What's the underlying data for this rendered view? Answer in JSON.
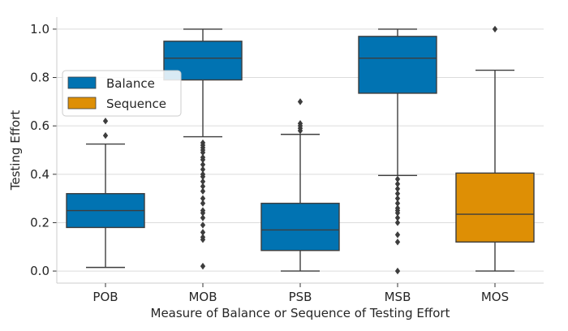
{
  "chart_data": {
    "type": "box",
    "xlabel": "Measure of Balance or Sequence of Testing Effort",
    "ylabel": "Testing Effort",
    "ylim": [
      -0.05,
      1.05
    ],
    "yticks": [
      0.0,
      0.2,
      0.4,
      0.6,
      0.8,
      1.0
    ],
    "ytick_labels": [
      "0.0",
      "0.2",
      "0.4",
      "0.6",
      "0.8",
      "1.0"
    ],
    "grid": true,
    "legend_position": "upper-left",
    "legend": [
      {
        "label": "Balance",
        "color": "#0173B2"
      },
      {
        "label": "Sequence",
        "color": "#DE8F05"
      }
    ],
    "boxes": [
      {
        "category": "POB",
        "group": "Balance",
        "whisker_low": 0.015,
        "q1": 0.18,
        "median": 0.25,
        "q3": 0.32,
        "whisker_high": 0.525,
        "outliers": [
          0.56,
          0.62
        ]
      },
      {
        "category": "MOB",
        "group": "Balance",
        "whisker_low": 0.555,
        "q1": 0.79,
        "median": 0.88,
        "q3": 0.95,
        "whisker_high": 1.0,
        "outliers": [
          0.53,
          0.52,
          0.51,
          0.5,
          0.49,
          0.47,
          0.46,
          0.44,
          0.42,
          0.4,
          0.39,
          0.37,
          0.35,
          0.33,
          0.3,
          0.28,
          0.25,
          0.24,
          0.22,
          0.19,
          0.16,
          0.14,
          0.13,
          0.02
        ]
      },
      {
        "category": "PSB",
        "group": "Balance",
        "whisker_low": 0.0,
        "q1": 0.085,
        "median": 0.17,
        "q3": 0.28,
        "whisker_high": 0.565,
        "outliers": [
          0.58,
          0.59,
          0.6,
          0.61,
          0.7
        ]
      },
      {
        "category": "MSB",
        "group": "Balance",
        "whisker_low": 0.395,
        "q1": 0.735,
        "median": 0.88,
        "q3": 0.97,
        "whisker_high": 1.0,
        "outliers": [
          0.38,
          0.36,
          0.34,
          0.32,
          0.3,
          0.28,
          0.26,
          0.25,
          0.24,
          0.22,
          0.2,
          0.15,
          0.12,
          0.0
        ]
      },
      {
        "category": "MOS",
        "group": "Sequence",
        "whisker_low": 0.0,
        "q1": 0.12,
        "median": 0.235,
        "q3": 0.405,
        "whisker_high": 0.83,
        "outliers": [
          1.0
        ]
      }
    ]
  }
}
